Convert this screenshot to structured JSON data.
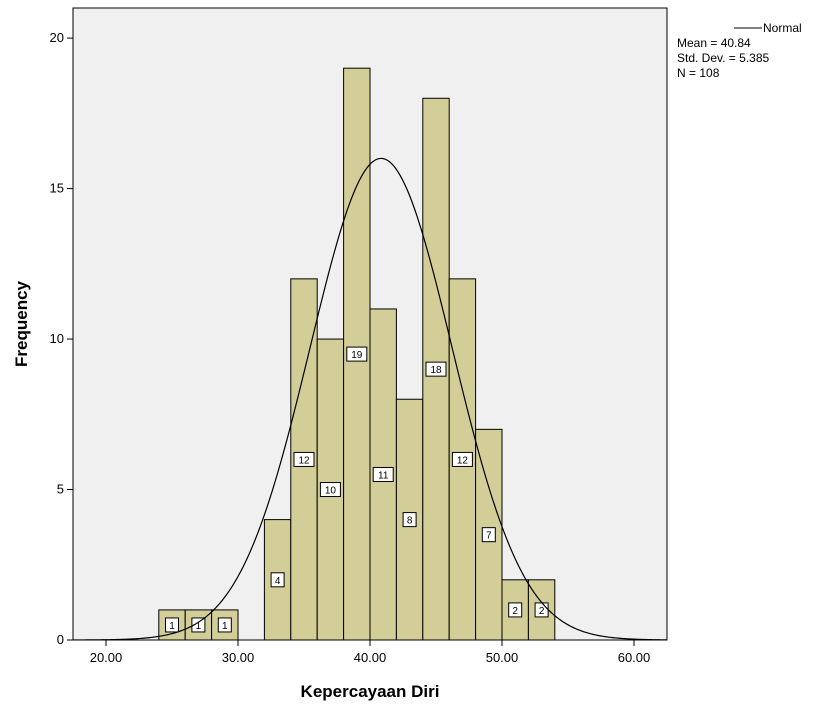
{
  "chart_data": {
    "type": "bar",
    "subtype": "histogram",
    "xlabel": "Kepercayaan Diri",
    "ylabel": "Frequency",
    "xlim": [
      17.5,
      62.5
    ],
    "ylim": [
      0,
      21
    ],
    "x_ticks": [
      20,
      30,
      40,
      50,
      60
    ],
    "x_tick_labels": [
      "20.00",
      "30.00",
      "40.00",
      "50.00",
      "60.00"
    ],
    "y_ticks": [
      0,
      5,
      10,
      15,
      20
    ],
    "y_tick_labels": [
      "0",
      "5",
      "10",
      "15",
      "20"
    ],
    "bin_width": 2,
    "bins": [
      {
        "start": 24,
        "value": 1
      },
      {
        "start": 26,
        "value": 1
      },
      {
        "start": 28,
        "value": 1
      },
      {
        "start": 32,
        "value": 4
      },
      {
        "start": 34,
        "value": 12
      },
      {
        "start": 36,
        "value": 10
      },
      {
        "start": 38,
        "value": 19
      },
      {
        "start": 40,
        "value": 11
      },
      {
        "start": 42,
        "value": 8
      },
      {
        "start": 44,
        "value": 18
      },
      {
        "start": 46,
        "value": 12
      },
      {
        "start": 48,
        "value": 7
      },
      {
        "start": 50,
        "value": 2
      },
      {
        "start": 52,
        "value": 2
      }
    ],
    "normal_curve": {
      "name": "Normal",
      "mean": 40.84,
      "std": 5.385,
      "n": 108
    },
    "legend": {
      "position": "top-right",
      "series_name": "Normal",
      "lines": [
        "Mean = 40.84",
        "Std. Dev. = 5.385",
        "N = 108"
      ]
    },
    "colors": {
      "plot_background": "#f0f0f0",
      "bar_fill": "#d3ce97",
      "bar_stroke": "#000000",
      "curve": "#000000"
    },
    "grid": false
  }
}
